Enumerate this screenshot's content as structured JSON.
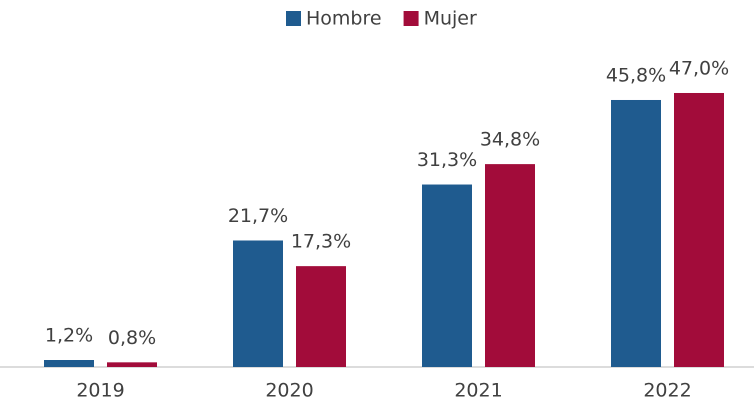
{
  "chart_data": {
    "type": "bar",
    "categories": [
      "2019",
      "2020",
      "2021",
      "2022"
    ],
    "series": [
      {
        "name": "Hombre",
        "color": "#1f5b8f",
        "values": [
          1.2,
          21.7,
          31.3,
          45.8
        ],
        "value_labels": [
          "1,2%",
          "21,7%",
          "31,3%",
          "45,8%"
        ]
      },
      {
        "name": "Mujer",
        "color": "#a20c3a",
        "values": [
          0.8,
          17.3,
          34.8,
          47.0
        ],
        "value_labels": [
          "0,8%",
          "17,3%",
          "34,8%",
          "47,0%"
        ]
      }
    ],
    "legend": "top"
  }
}
